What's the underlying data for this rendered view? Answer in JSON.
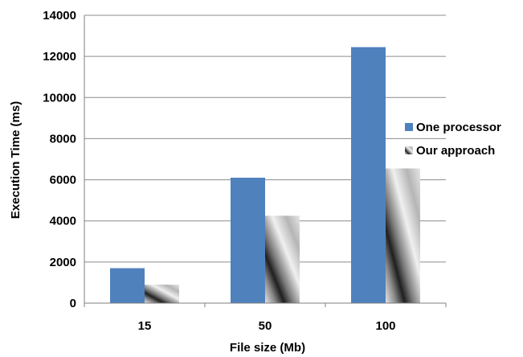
{
  "chart_data": {
    "type": "bar",
    "categories": [
      "15",
      "50",
      "100"
    ],
    "series": [
      {
        "name": "One processor",
        "values": [
          1700,
          6100,
          12450
        ],
        "color": "#4f81bd",
        "pattern": "solid"
      },
      {
        "name": "Our approach",
        "values": [
          900,
          4250,
          6550
        ],
        "color": "#999999",
        "pattern": "diagonal-gradient"
      }
    ],
    "xlabel": "File size (Mb)",
    "ylabel": "Execution Time (ms)",
    "ylim": [
      0,
      14000
    ],
    "yticks": [
      "0",
      "2000",
      "4000",
      "6000",
      "8000",
      "10000",
      "12000",
      "14000"
    ],
    "grid": true,
    "legend": "right"
  }
}
